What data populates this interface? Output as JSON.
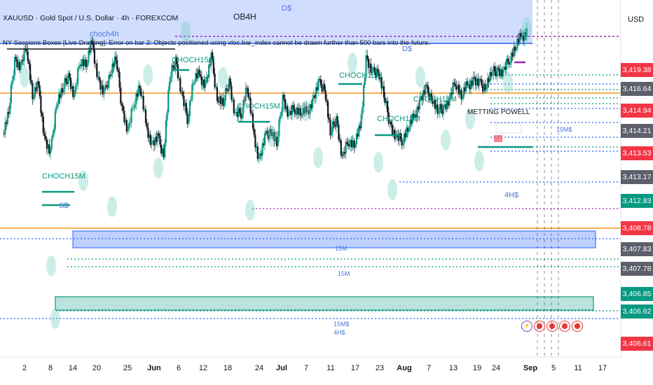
{
  "header": {
    "symbol_line": "XAUUSD · Gold Spot / U.S. Dollar · 4h · FOREXCOM",
    "warning": "NY Sessions Boxes [Live Drawing]: Error on bar 2: Objects positioned using xloc.bar_index cannot be drawn further than 500 bars into the future."
  },
  "currency": "USD",
  "annotations": {
    "ob4h": "OB4H",
    "dollar_top": "D$",
    "dollar_mid": "D$",
    "four_h": "4H$",
    "s_dollar": "S$",
    "choch_labels": [
      "CHOCH15M",
      "CHOCH15M",
      "CHOCH15M",
      "CHOCH15M",
      "CHOCH15M",
      "CHOCH15M"
    ],
    "choch4h": "choch4h",
    "meeting": "METTING POWELL",
    "small_15m": [
      "15M",
      "15M",
      "15M$",
      "15M$",
      "4H$"
    ]
  },
  "price_tags": [
    {
      "value": "3,419.38",
      "color": "#f23645"
    },
    {
      "value": "3,416.64",
      "color": "#5d606b"
    },
    {
      "value": "3,414.94",
      "color": "#f23645"
    },
    {
      "value": "3,414.21",
      "color": "#5d606b"
    },
    {
      "value": "3,413.53",
      "color": "#f23645"
    },
    {
      "value": "3,413.17",
      "color": "#5d606b"
    },
    {
      "value": "3,412.83",
      "color": "#089981"
    },
    {
      "value": "3,408.78",
      "color": "#f23645"
    },
    {
      "value": "3,407.83",
      "color": "#5d606b"
    },
    {
      "value": "3,407.78",
      "color": "#5d606b"
    },
    {
      "value": "3,406.85",
      "color": "#089981"
    },
    {
      "value": "3,406.62",
      "color": "#089981"
    },
    {
      "value": "3,406.61",
      "color": "#f23645"
    }
  ],
  "xaxis": {
    "ticks": [
      "2",
      "8",
      "14",
      "20",
      "25",
      "Jun",
      "6",
      "12",
      "18",
      "24",
      "Jul",
      "7",
      "11",
      "17",
      "23",
      "Aug",
      "7",
      "13",
      "19",
      "24",
      "Sep",
      "5",
      "11",
      "17"
    ],
    "bold": [
      "Jun",
      "Jul",
      "Aug",
      "Sep"
    ]
  },
  "chart_data": {
    "type": "candlestick",
    "title": "XAUUSD · Gold Spot / U.S. Dollar · 4h · FOREXCOM",
    "xlabel": "",
    "ylabel": "",
    "x_range": [
      "2025-05-02",
      "2025-09-17"
    ],
    "close_path": [
      62,
      70,
      90,
      86,
      95,
      76,
      80,
      60,
      54,
      74,
      78,
      84,
      75,
      90,
      88,
      96,
      82,
      76,
      85,
      90,
      72,
      62,
      74,
      80,
      66,
      58,
      60,
      55,
      82,
      90,
      76,
      68,
      82,
      84,
      80,
      90,
      76,
      73,
      82,
      68,
      70,
      80,
      64,
      52,
      60,
      64,
      58,
      76,
      68,
      72,
      70,
      70,
      74,
      80,
      80,
      62,
      68,
      52,
      60,
      58,
      64,
      90,
      84,
      86,
      76,
      66,
      60,
      60,
      64,
      68,
      74,
      78,
      76,
      70,
      72,
      74,
      82,
      76,
      80,
      82,
      80,
      80,
      84,
      86,
      84,
      90,
      94,
      98,
      100
    ],
    "key_levels": [
      3419.38,
      3416.64,
      3414.94,
      3414.21,
      3413.53,
      3413.17,
      3412.83,
      3408.78,
      3407.83,
      3407.78,
      3406.85,
      3406.62,
      3406.61
    ],
    "colors": {
      "up": "#089981",
      "down": "#131722",
      "orange": "#f7931a",
      "blue_zone": "#2962ff",
      "green_zone": "#089981",
      "purple": "#9c27b0"
    }
  }
}
